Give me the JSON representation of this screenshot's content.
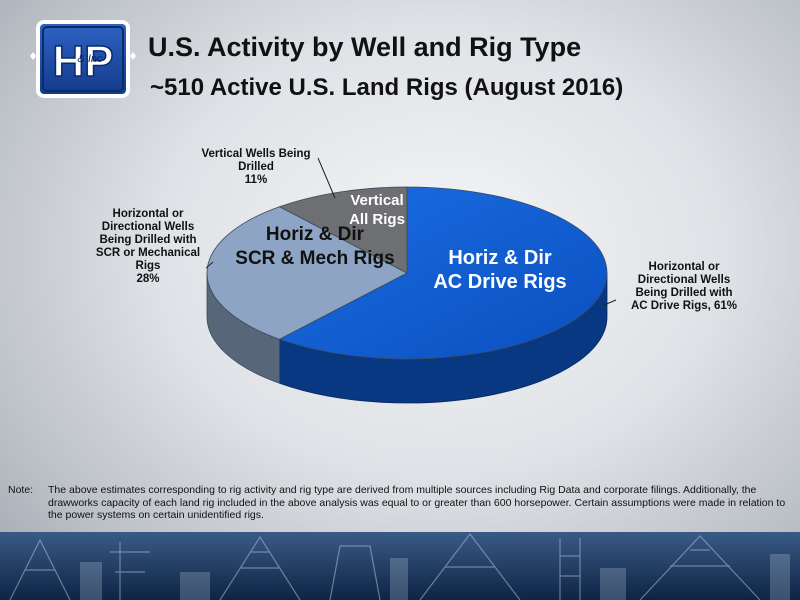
{
  "logo": {
    "text": "HP",
    "script_text": "& Inc",
    "colors": {
      "primary": "#1a4aa6",
      "outline": "#ffffff"
    }
  },
  "header": {
    "title": "U.S. Activity by Well and Rig Type",
    "subtitle": "~510 Active U.S. Land Rigs (August 2016)"
  },
  "chart_data": {
    "type": "pie",
    "style": "3d",
    "slices": [
      {
        "label_lines": [
          "Horiz & Dir",
          "AC Drive Rigs"
        ],
        "value": 61,
        "color": "#0d5ad0",
        "callout_lines": [
          "Horizontal or",
          "Directional Wells",
          "Being Drilled with",
          "AC Drive Rigs, 61%"
        ]
      },
      {
        "label_lines": [
          "Horiz & Dir",
          "SCR & Mech Rigs"
        ],
        "value": 28,
        "color": "#8ea4c4",
        "callout_lines": [
          "Horizontal or",
          "Directional Wells",
          "Being Drilled with",
          "SCR or Mechanical",
          "Rigs",
          "28%"
        ]
      },
      {
        "label_lines": [
          "Vertical",
          "All Rigs"
        ],
        "value": 11,
        "color": "#6d6f72",
        "callout_lines": [
          "Vertical Wells Being",
          "Drilled",
          "11%"
        ]
      }
    ]
  },
  "note": {
    "label": "Note:",
    "text": "The above estimates corresponding to rig activity and rig type are derived from multiple sources including Rig Data and corporate filings.  Additionally, the drawworks capacity of each land rig included in the above analysis was equal to or greater than 600 horsepower. Certain assumptions were made in relation to the power systems on certain unidentified rigs."
  }
}
